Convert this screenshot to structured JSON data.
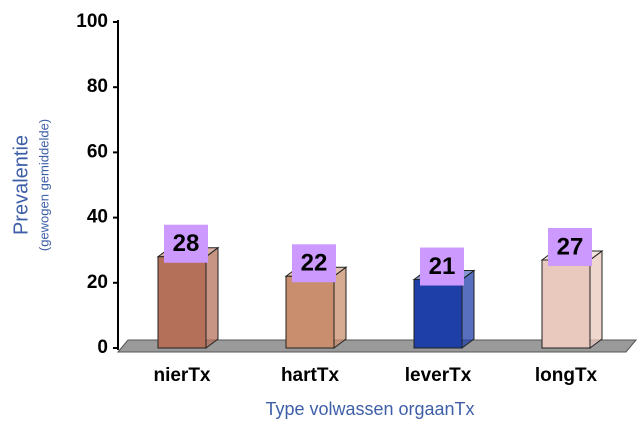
{
  "chart_data": {
    "type": "bar3d",
    "y_label": "Prevalentie",
    "y_label_sub": "(gewogen gemiddelde)",
    "x_label": "Type volwassen orgaanTx",
    "categories": [
      "nierTx",
      "hartTx",
      "leverTx",
      "longTx"
    ],
    "values": [
      28,
      22,
      21,
      27
    ],
    "colors": [
      "#b5705a",
      "#c98e6e",
      "#1f3fa8",
      "#e9c9bd"
    ],
    "label_color": "#cc99ff",
    "ylim": [
      0,
      100
    ],
    "yticks": [
      0,
      20,
      40,
      60,
      80,
      100
    ],
    "grid": false
  }
}
